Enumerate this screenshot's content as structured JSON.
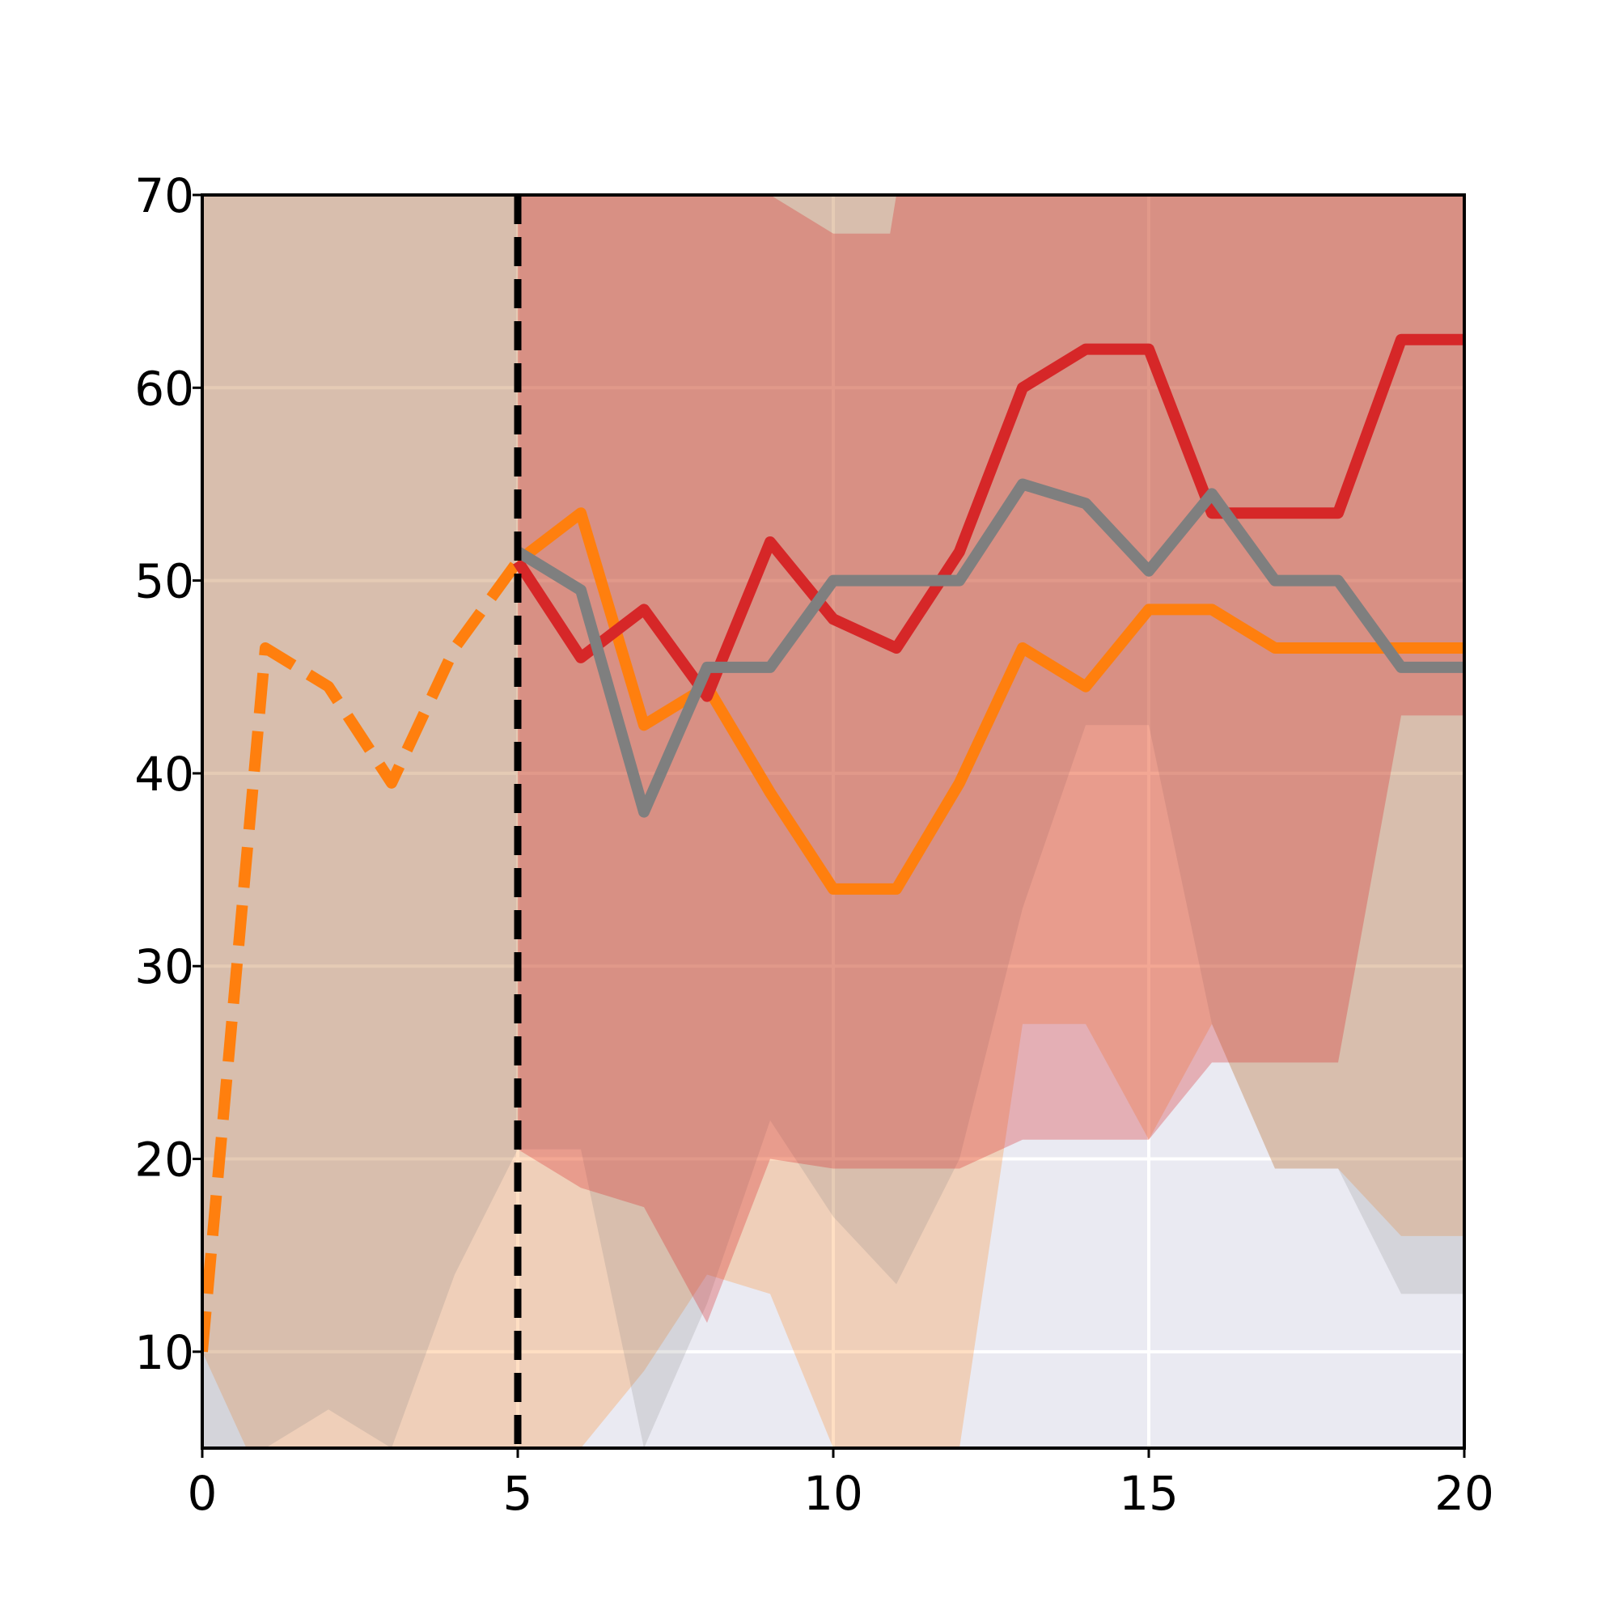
{
  "chart_data": {
    "type": "line",
    "title": "",
    "xlabel": "",
    "ylabel": "",
    "xlim": [
      0,
      20
    ],
    "ylim": [
      5,
      70
    ],
    "xticks": [
      0,
      5,
      10,
      15,
      20
    ],
    "yticks": [
      10,
      20,
      30,
      40,
      50,
      60,
      70
    ],
    "grid": true,
    "background": "#eaeaf2",
    "vline": {
      "x": 5,
      "style": "dashed",
      "color": "#000000"
    },
    "bands": [
      {
        "color": "#ff7f0e",
        "opacity": 0.25,
        "x": [
          0,
          0.7,
          1,
          2,
          2.5,
          3,
          3.3,
          4,
          5,
          6,
          7,
          8,
          9,
          10,
          11,
          12,
          13,
          14,
          15,
          16,
          17,
          18,
          19,
          20
        ],
        "upper": [
          70,
          70,
          70,
          70,
          70,
          70,
          70,
          70,
          70,
          70,
          70,
          70,
          70,
          70,
          70,
          70,
          70,
          70,
          70,
          70,
          70,
          70,
          70,
          70
        ],
        "lower": [
          10,
          5,
          5,
          5,
          5,
          5,
          5,
          5,
          5,
          5,
          9,
          14,
          13,
          5,
          5,
          5,
          27,
          27,
          21,
          27,
          19.5,
          19.5,
          16,
          16
        ]
      },
      {
        "color": "#7f7f7f",
        "opacity": 0.2,
        "x": [
          0,
          0.7,
          1,
          2,
          3,
          4,
          5,
          6,
          7,
          8,
          9,
          10,
          11,
          12,
          13,
          14,
          15,
          16,
          17,
          18,
          19,
          20
        ],
        "upper": [
          70,
          70,
          70,
          70,
          70,
          70,
          70,
          70,
          70,
          70,
          70,
          70,
          70,
          70,
          70,
          70,
          70,
          70,
          70,
          70,
          70,
          70
        ],
        "lower": [
          5,
          5,
          5,
          7,
          5,
          14,
          20.5,
          20.5,
          5,
          12.5,
          22,
          17,
          13.5,
          20,
          33,
          42.5,
          42.5,
          27,
          19.5,
          19.5,
          13,
          13
        ]
      },
      {
        "color": "#d62728",
        "opacity": 0.3,
        "x": [
          5,
          6,
          7,
          8,
          9,
          10,
          10.9,
          11,
          12,
          13,
          14,
          15,
          16,
          17,
          18,
          19,
          20
        ],
        "upper": [
          70,
          70,
          70,
          70,
          70,
          68,
          68,
          70,
          70,
          70,
          70,
          70,
          70,
          70,
          70,
          70,
          70
        ],
        "lower": [
          20.5,
          18.5,
          17.5,
          11.5,
          20,
          19.5,
          19.5,
          19.5,
          19.5,
          21,
          21,
          21,
          25,
          25,
          25,
          43,
          43
        ]
      }
    ],
    "series": [
      {
        "color": "#ff7f0e",
        "style": "dashed",
        "x": [
          0,
          1,
          2,
          3,
          4,
          5
        ],
        "values": [
          10,
          46.5,
          44.5,
          39.5,
          46.5,
          51
        ]
      },
      {
        "color": "#ff7f0e",
        "style": "solid",
        "x": [
          5,
          6,
          7,
          8,
          9,
          10,
          11,
          12,
          13,
          14,
          15,
          16,
          17,
          18,
          19,
          20
        ],
        "values": [
          51,
          53.5,
          42.5,
          44.5,
          39,
          34,
          34,
          39.5,
          46.5,
          44.5,
          48.5,
          48.5,
          46.5,
          46.5,
          46.5,
          46.5
        ]
      },
      {
        "color": "#d62728",
        "style": "solid",
        "x": [
          5,
          6,
          7,
          8,
          9,
          10,
          11,
          12,
          13,
          14,
          15,
          16,
          17,
          18,
          19,
          20
        ],
        "values": [
          51,
          46,
          48.5,
          44,
          52,
          48,
          46.5,
          51.5,
          60,
          62,
          62,
          53.5,
          53.5,
          53.5,
          62.5,
          62.5
        ]
      },
      {
        "color": "#7f7f7f",
        "style": "solid",
        "x": [
          5,
          6,
          7,
          8,
          9,
          10,
          11,
          12,
          13,
          14,
          15,
          16,
          17,
          18,
          19,
          20
        ],
        "values": [
          51.5,
          49.5,
          38,
          45.5,
          45.5,
          50,
          50,
          50,
          55,
          54,
          50.5,
          54.5,
          50,
          50,
          45.5,
          45.5
        ]
      }
    ]
  }
}
